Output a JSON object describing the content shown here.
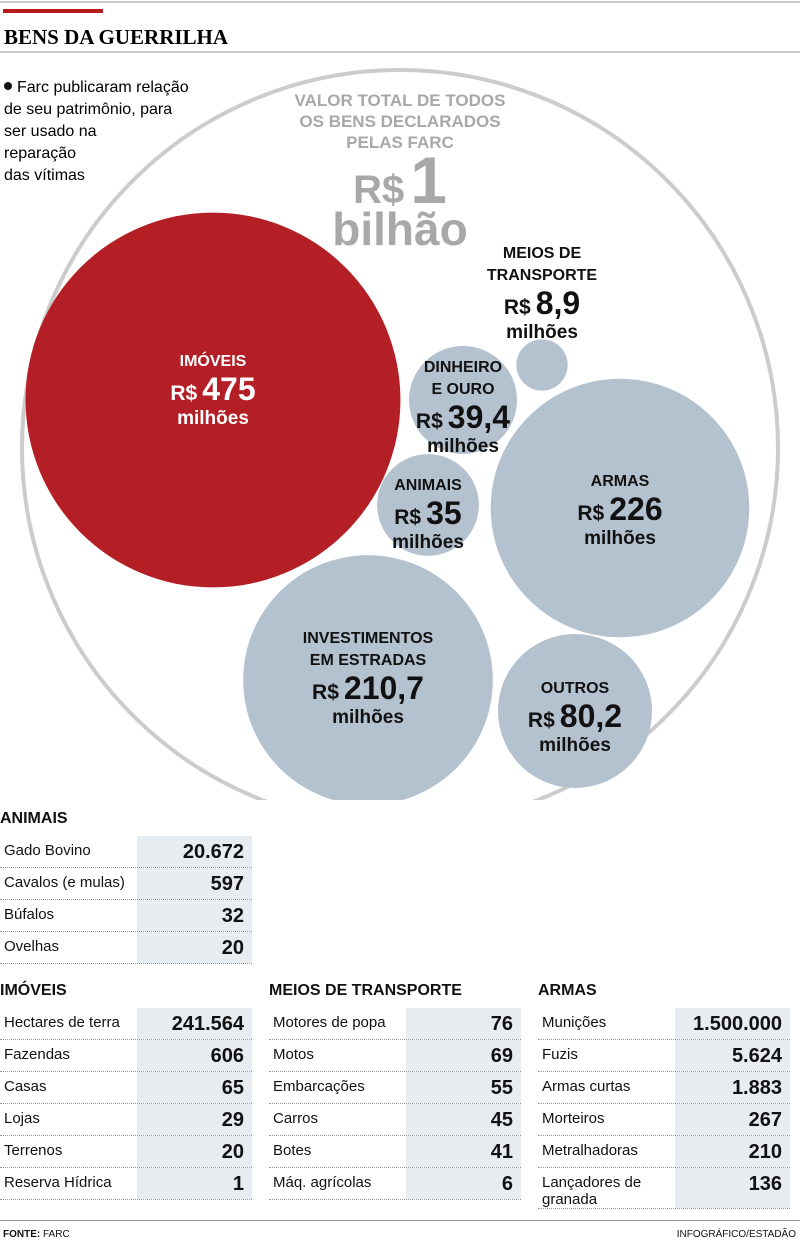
{
  "header": {
    "title": "BENS DA GUERRILHA"
  },
  "intro": [
    "Farc publicaram relação",
    "de seu patrimônio, para",
    "ser usado na",
    "reparação",
    "das vítimas"
  ],
  "total": {
    "label": [
      "VALOR TOTAL DE TODOS",
      "OS BENS DECLARADOS",
      "PELAS FARC"
    ],
    "currency": "R$",
    "value": "1",
    "unit": "bilhão"
  },
  "bubbles": [
    {
      "label": [
        "IMÓVEIS"
      ],
      "currency": "R$",
      "value": 475,
      "value_label": "475",
      "unit": "milhões"
    },
    {
      "label": [
        "MEIOS DE",
        "TRANSPORTE"
      ],
      "currency": "R$",
      "value": 8.9,
      "value_label": "8,9",
      "unit": "milhões"
    },
    {
      "label": [
        "DINHEIRO",
        "E OURO"
      ],
      "currency": "R$",
      "value": 39.4,
      "value_label": "39,4",
      "unit": "milhões"
    },
    {
      "label": [
        "ANIMAIS"
      ],
      "currency": "R$",
      "value": 35,
      "value_label": "35",
      "unit": "milhões"
    },
    {
      "label": [
        "ARMAS"
      ],
      "currency": "R$",
      "value": 226,
      "value_label": "226",
      "unit": "milhões"
    },
    {
      "label": [
        "INVESTIMENTOS",
        "EM ESTRADAS"
      ],
      "currency": "R$",
      "value": 210.7,
      "value_label": "210,7",
      "unit": "milhões"
    },
    {
      "label": [
        "OUTROS"
      ],
      "currency": "R$",
      "value": 80.2,
      "value_label": "80,2",
      "unit": "milhões"
    }
  ],
  "tables": [
    {
      "title": "ANIMAIS",
      "rows": [
        [
          "Gado Bovino",
          "20.672"
        ],
        [
          "Cavalos (e mulas)",
          "597"
        ],
        [
          "Búfalos",
          "32"
        ],
        [
          "Ovelhas",
          "20"
        ]
      ]
    },
    {
      "title": "IMÓVEIS",
      "rows": [
        [
          "Hectares de terra",
          "241.564"
        ],
        [
          "Fazendas",
          "606"
        ],
        [
          "Casas",
          "65"
        ],
        [
          "Lojas",
          "29"
        ],
        [
          "Terrenos",
          "20"
        ],
        [
          "Reserva Hídrica",
          "1"
        ]
      ]
    },
    {
      "title": "MEIOS DE TRANSPORTE",
      "rows": [
        [
          "Motores de popa",
          "76"
        ],
        [
          "Motos",
          "69"
        ],
        [
          "Embarcações",
          "55"
        ],
        [
          "Carros",
          "45"
        ],
        [
          "Botes",
          "41"
        ],
        [
          "Máq. agrícolas",
          "6"
        ]
      ]
    },
    {
      "title": "ARMAS",
      "rows": [
        [
          "Munições",
          "1.500.000"
        ],
        [
          "Fuzis",
          "5.624"
        ],
        [
          "Armas curtas",
          "1.883"
        ],
        [
          "Morteiros",
          "267"
        ],
        [
          "Metralhadoras",
          "210"
        ],
        [
          "Lançadores de granada",
          "136"
        ]
      ]
    }
  ],
  "footer": {
    "source_label": "FONTE:",
    "source": "FARC",
    "credit": "INFOGRÁFICO/ESTADÃO"
  }
}
